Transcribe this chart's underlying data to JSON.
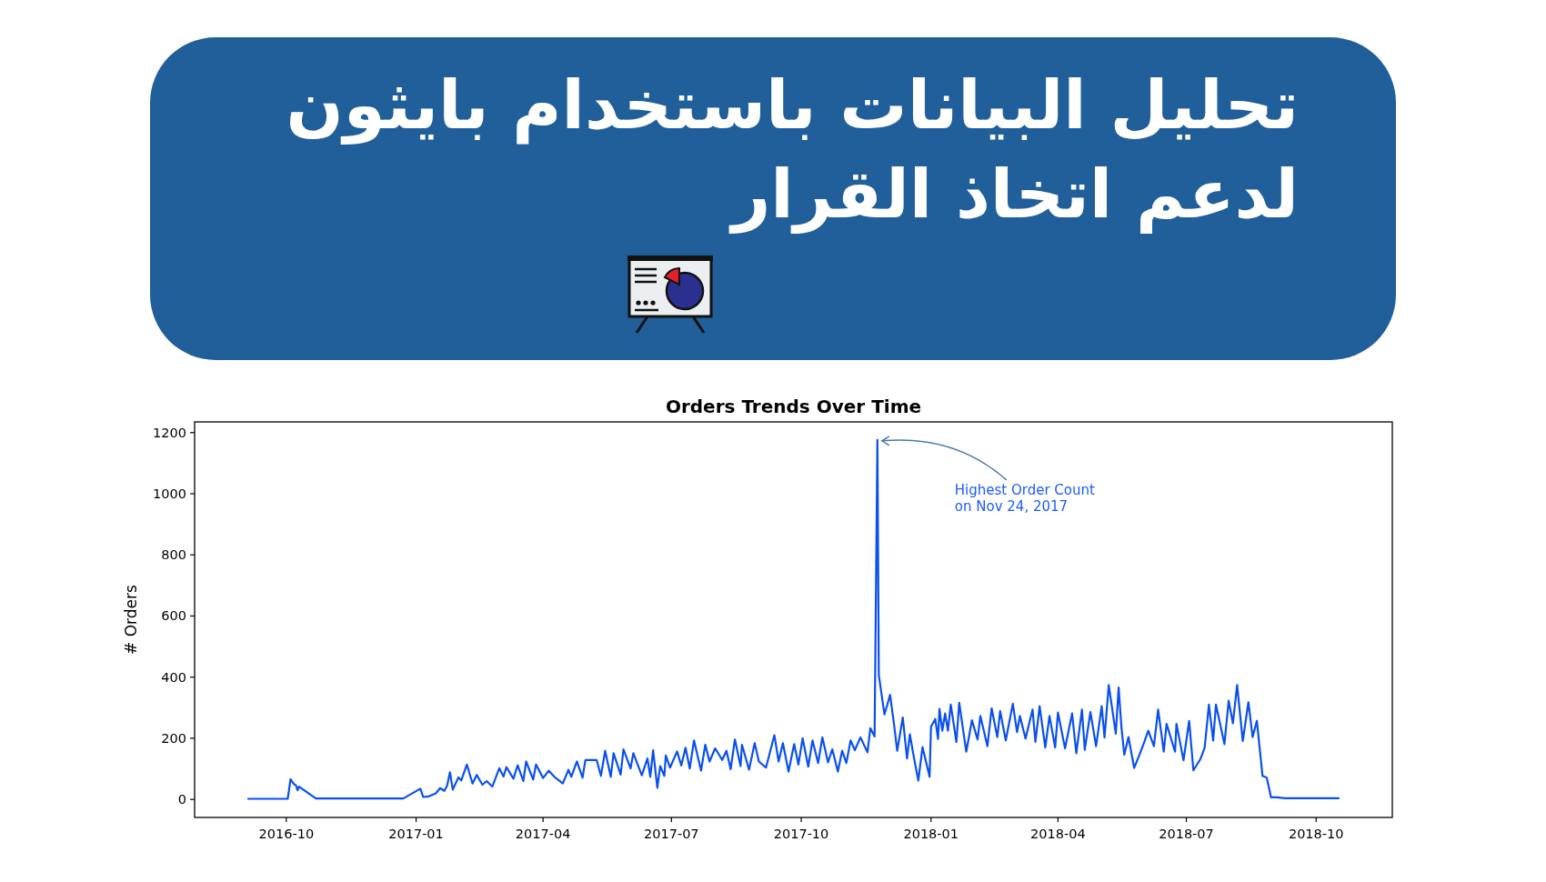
{
  "chart_data": {
    "type": "line",
    "title": "تحليل البيانات باستخدام بايثون لدعم اتخاذ القرار",
    "subtitle": "Orders Trends Over Time",
    "ylabel": "# Orders",
    "x": [
      "2016-09-04",
      "2016-10-02",
      "2016-10-04",
      "2016-10-06",
      "2016-10-08",
      "2016-10-09",
      "2016-10-10",
      "2016-10-22",
      "2016-12-23",
      "2017-01-04",
      "2017-01-06",
      "2017-01-10",
      "2017-01-15",
      "2017-01-18",
      "2017-01-21",
      "2017-01-23",
      "2017-01-25",
      "2017-01-27",
      "2017-01-31",
      "2017-02-02",
      "2017-02-06",
      "2017-02-10",
      "2017-02-13",
      "2017-02-17",
      "2017-02-20",
      "2017-02-24",
      "2017-03-01",
      "2017-03-04",
      "2017-03-06",
      "2017-03-11",
      "2017-03-14",
      "2017-03-18",
      "2017-03-20",
      "2017-03-25",
      "2017-03-27",
      "2017-04-01",
      "2017-04-05",
      "2017-04-09",
      "2017-04-15",
      "2017-04-19",
      "2017-04-21",
      "2017-04-25",
      "2017-04-29",
      "2017-05-01",
      "2017-05-09",
      "2017-05-12",
      "2017-05-15",
      "2017-05-19",
      "2017-05-21",
      "2017-05-26",
      "2017-05-28",
      "2017-06-02",
      "2017-06-04",
      "2017-06-10",
      "2017-06-14",
      "2017-06-16",
      "2017-06-18",
      "2017-06-21",
      "2017-06-23",
      "2017-06-26",
      "2017-06-27",
      "2017-06-30",
      "2017-07-05",
      "2017-07-08",
      "2017-07-11",
      "2017-07-14",
      "2017-07-17",
      "2017-07-22",
      "2017-07-25",
      "2017-07-28",
      "2017-08-01",
      "2017-08-06",
      "2017-08-09",
      "2017-08-12",
      "2017-08-15",
      "2017-08-19",
      "2017-08-20",
      "2017-08-25",
      "2017-08-29",
      "2017-09-01",
      "2017-09-06",
      "2017-09-12",
      "2017-09-15",
      "2017-09-18",
      "2017-09-22",
      "2017-09-26",
      "2017-09-29",
      "2017-10-02",
      "2017-10-06",
      "2017-10-09",
      "2017-10-13",
      "2017-10-16",
      "2017-10-20",
      "2017-10-23",
      "2017-10-27",
      "2017-10-30",
      "2017-11-02",
      "2017-11-05",
      "2017-11-08",
      "2017-11-12",
      "2017-11-17",
      "2017-11-19",
      "2017-11-22",
      "2017-11-24",
      "2017-11-25",
      "2017-11-29",
      "2017-12-03",
      "2017-12-06",
      "2017-12-08",
      "2017-12-12",
      "2017-12-15",
      "2017-12-17",
      "2017-12-20",
      "2017-12-23",
      "2017-12-26",
      "2017-12-31",
      "2018-01-01",
      "2018-01-04",
      "2018-01-06",
      "2018-01-07",
      "2018-01-09",
      "2018-01-11",
      "2018-01-13",
      "2018-01-15",
      "2018-01-19",
      "2018-01-21",
      "2018-01-26",
      "2018-01-30",
      "2018-02-03",
      "2018-02-05",
      "2018-02-10",
      "2018-02-13",
      "2018-02-17",
      "2018-02-19",
      "2018-02-23",
      "2018-02-28",
      "2018-03-03",
      "2018-03-05",
      "2018-03-09",
      "2018-03-14",
      "2018-03-16",
      "2018-03-19",
      "2018-03-23",
      "2018-03-26",
      "2018-03-30",
      "2018-04-01",
      "2018-04-06",
      "2018-04-11",
      "2018-04-14",
      "2018-04-18",
      "2018-04-20",
      "2018-04-24",
      "2018-04-28",
      "2018-05-02",
      "2018-05-04",
      "2018-05-07",
      "2018-05-12",
      "2018-05-14",
      "2018-05-16",
      "2018-05-18",
      "2018-05-21",
      "2018-05-25",
      "2018-05-29",
      "2018-06-01",
      "2018-06-04",
      "2018-06-08",
      "2018-06-11",
      "2018-06-15",
      "2018-06-17",
      "2018-06-23",
      "2018-06-24",
      "2018-06-29",
      "2018-07-03",
      "2018-07-06",
      "2018-07-11",
      "2018-07-14",
      "2018-07-17",
      "2018-07-20",
      "2018-07-22",
      "2018-07-28",
      "2018-07-31",
      "2018-08-03",
      "2018-08-06",
      "2018-08-10",
      "2018-08-14",
      "2018-08-17",
      "2018-08-20",
      "2018-08-24",
      "2018-08-27",
      "2018-08-30",
      "2018-09-03",
      "2018-09-09",
      "2018-10-17"
    ],
    "series": [
      {
        "color": "#0a50f0",
        "values": [
          2,
          2,
          66,
          52,
          45,
          30,
          42,
          3,
          3,
          35,
          8,
          10,
          20,
          37,
          28,
          45,
          89,
          32,
          72,
          62,
          114,
          52,
          80,
          48,
          60,
          42,
          102,
          75,
          106,
          68,
          112,
          60,
          124,
          65,
          114,
          70,
          94,
          74,
          52,
          97,
          74,
          124,
          71,
          129,
          129,
          77,
          159,
          74,
          151,
          81,
          164,
          101,
          151,
          79,
          134,
          74,
          161,
          38,
          109,
          77,
          144,
          104,
          157,
          111,
          169,
          101,
          193,
          94,
          179,
          124,
          167,
          129,
          159,
          99,
          196,
          109,
          179,
          97,
          184,
          124,
          104,
          210,
          124,
          184,
          91,
          181,
          114,
          200,
          107,
          193,
          119,
          203,
          121,
          164,
          91,
          159,
          119,
          193,
          161,
          203,
          154,
          233,
          206,
          1176,
          407,
          278,
          342,
          238,
          159,
          268,
          134,
          213,
          134,
          62,
          171,
          74,
          238,
          263,
          198,
          296,
          225,
          281,
          225,
          310,
          188,
          316,
          156,
          259,
          196,
          273,
          174,
          298,
          204,
          289,
          193,
          313,
          220,
          273,
          199,
          294,
          188,
          305,
          170,
          273,
          170,
          284,
          167,
          281,
          151,
          294,
          162,
          286,
          174,
          305,
          202,
          374,
          215,
          366,
          236,
          146,
          204,
          103,
          149,
          185,
          225,
          174,
          294,
          156,
          247,
          156,
          247,
          128,
          257,
          95,
          132,
          170,
          310,
          193,
          310,
          181,
          323,
          249,
          374,
          191,
          318,
          204,
          257,
          77,
          71,
          7,
          7,
          4,
          4
        ]
      }
    ],
    "xlim": [
      "2016-07-28",
      "2018-11-24"
    ],
    "ylim": [
      -59,
      1235
    ],
    "xticks": [
      {
        "value": "2016-10-01",
        "label": "2016-10"
      },
      {
        "value": "2017-01-01",
        "label": "2017-01"
      },
      {
        "value": "2017-04-01",
        "label": "2017-04"
      },
      {
        "value": "2017-07-01",
        "label": "2017-07"
      },
      {
        "value": "2017-10-01",
        "label": "2017-10"
      },
      {
        "value": "2018-01-01",
        "label": "2018-01"
      },
      {
        "value": "2018-04-01",
        "label": "2018-04"
      },
      {
        "value": "2018-07-01",
        "label": "2018-07"
      },
      {
        "value": "2018-10-01",
        "label": "2018-10"
      }
    ],
    "yticks": [
      0,
      200,
      400,
      600,
      800,
      1000,
      1200
    ],
    "annotations": [
      {
        "text": "Highest Order Count\non Nov 24, 2017",
        "x": "2017-11-24",
        "y": 1176
      }
    ]
  }
}
